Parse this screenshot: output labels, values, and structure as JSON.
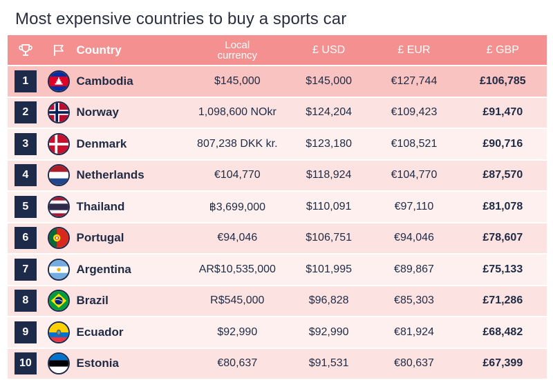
{
  "title": "Most expensive countries to buy a sports car",
  "header": {
    "country": "Country",
    "local_line1": "Local",
    "local_line2": "currency",
    "usd": "£ USD",
    "eur": "£ EUR",
    "gbp": "£ GBP",
    "rank_icon": "trophy-icon",
    "flag_icon": "flag-icon"
  },
  "colors": {
    "header_bg": "#f49090",
    "top_row_bg": "#f9c3c1",
    "row_odd_bg": "#fce3e1",
    "row_even_bg": "#fdf0ee",
    "rank_box": "#1e2a4a"
  },
  "chart_data": {
    "type": "table",
    "columns": [
      "",
      "",
      "Country",
      "Local currency",
      "£ USD",
      "£ EUR",
      "£ GBP"
    ],
    "rows": [
      {
        "rank": "1",
        "country": "Cambodia",
        "flag": "cambodia-flag-icon",
        "local": "$145,000",
        "usd": "$145,000",
        "eur": "€127,744",
        "gbp": "£106,785"
      },
      {
        "rank": "2",
        "country": "Norway",
        "flag": "norway-flag-icon",
        "local": "1,098,600 NOkr",
        "usd": "$124,204",
        "eur": "€109,423",
        "gbp": "£91,470"
      },
      {
        "rank": "3",
        "country": "Denmark",
        "flag": "denmark-flag-icon",
        "local": "807,238 DKK kr.",
        "usd": "$123,180",
        "eur": "€108,521",
        "gbp": "£90,716"
      },
      {
        "rank": "4",
        "country": "Netherlands",
        "flag": "netherlands-flag-icon",
        "local": "€104,770",
        "usd": "$118,924",
        "eur": "€104,770",
        "gbp": "£87,570"
      },
      {
        "rank": "5",
        "country": "Thailand",
        "flag": "thailand-flag-icon",
        "local": "฿3,699,000",
        "usd": "$110,091",
        "eur": "€97,110",
        "gbp": "£81,078"
      },
      {
        "rank": "6",
        "country": "Portugal",
        "flag": "portugal-flag-icon",
        "local": "€94,046",
        "usd": "$106,751",
        "eur": "€94,046",
        "gbp": "£78,607"
      },
      {
        "rank": "7",
        "country": "Argentina",
        "flag": "argentina-flag-icon",
        "local": "AR$10,535,000",
        "usd": "$101,995",
        "eur": "€89,867",
        "gbp": "£75,133"
      },
      {
        "rank": "8",
        "country": "Brazil",
        "flag": "brazil-flag-icon",
        "local": "R$545,000",
        "usd": "$96,828",
        "eur": "€85,303",
        "gbp": "£71,286"
      },
      {
        "rank": "9",
        "country": "Ecuador",
        "flag": "ecuador-flag-icon",
        "local": "$92,990",
        "usd": "$92,990",
        "eur": "€81,924",
        "gbp": "£68,482"
      },
      {
        "rank": "10",
        "country": "Estonia",
        "flag": "estonia-flag-icon",
        "local": "€80,637",
        "usd": "$91,531",
        "eur": "€80,637",
        "gbp": "£67,399"
      }
    ]
  }
}
